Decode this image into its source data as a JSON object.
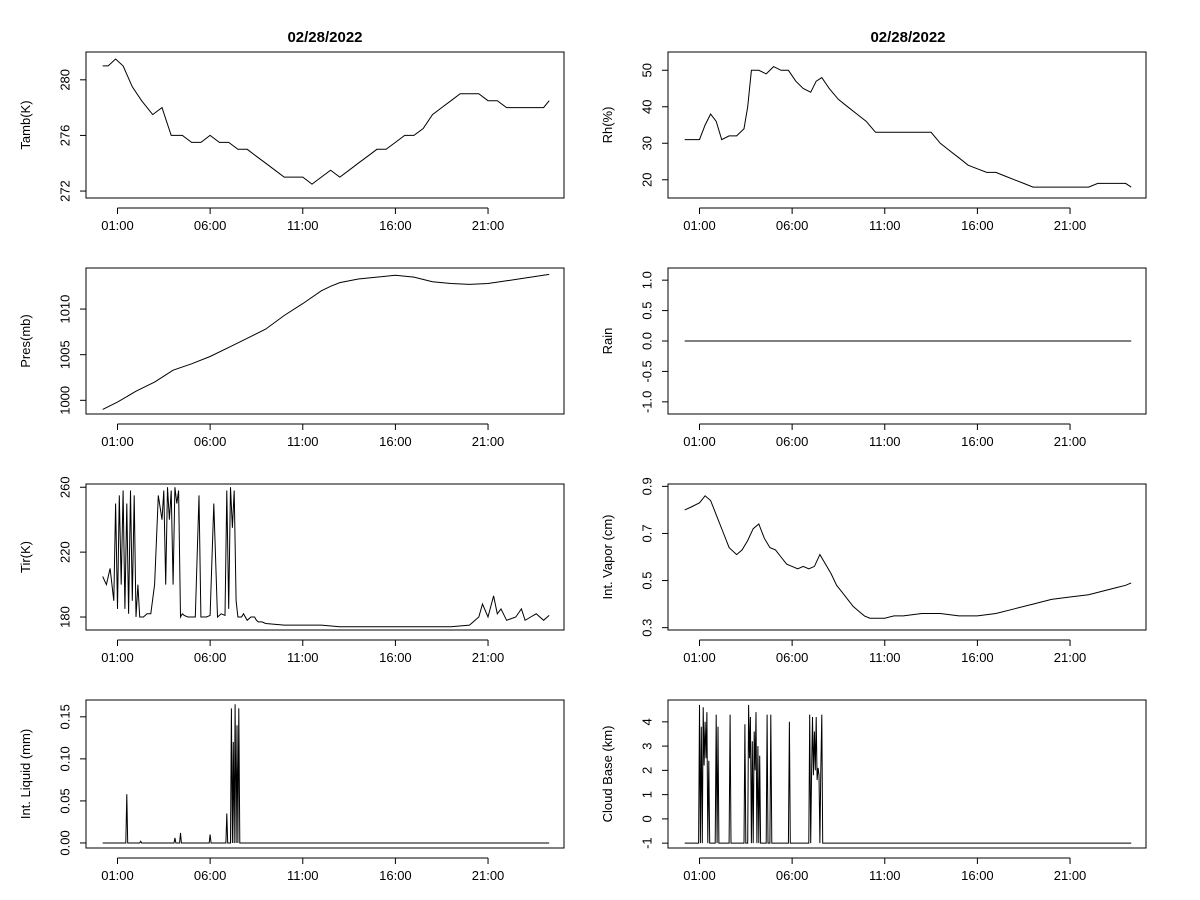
{
  "column_titles": [
    "02/28/2022",
    "02/28/2022"
  ],
  "chart_data": [
    {
      "id": "tamb",
      "type": "line",
      "ylabel": "Tamb(K)",
      "ylim": [
        271.5,
        282
      ],
      "yticks": [
        272,
        276,
        280
      ],
      "ytick_labels": [
        "272",
        "276",
        "280"
      ],
      "x": [
        0.2,
        0.5,
        0.9,
        1.3,
        1.8,
        2.3,
        2.9,
        3.4,
        3.9,
        4.5,
        5.0,
        5.5,
        6.0,
        6.5,
        7.0,
        7.5,
        8.0,
        8.5,
        9.0,
        9.5,
        10.0,
        10.5,
        11.0,
        11.5,
        12.0,
        12.5,
        13.0,
        13.5,
        14.0,
        14.5,
        15.0,
        15.5,
        16.0,
        16.5,
        17.0,
        17.5,
        18.0,
        18.5,
        19.0,
        19.5,
        20.0,
        20.5,
        21.0,
        21.5,
        22.0,
        22.5,
        23.0,
        23.5,
        24.0,
        24.3
      ],
      "y": [
        281.0,
        281.0,
        281.5,
        281.0,
        279.5,
        278.5,
        277.5,
        278.0,
        276.0,
        276.0,
        275.5,
        275.5,
        276.0,
        275.5,
        275.5,
        275.0,
        275.0,
        274.5,
        274.0,
        273.5,
        273.0,
        273.0,
        273.0,
        272.5,
        273.0,
        273.5,
        273.0,
        273.5,
        274.0,
        274.5,
        275.0,
        275.0,
        275.5,
        276.0,
        276.0,
        276.5,
        277.5,
        278.0,
        278.5,
        279.0,
        279.0,
        279.0,
        278.5,
        278.5,
        278.0,
        278.0,
        278.0,
        278.0,
        278.0,
        278.5
      ]
    },
    {
      "id": "rh",
      "type": "line",
      "ylabel": "Rh(%)",
      "ylim": [
        15,
        55
      ],
      "yticks": [
        20,
        30,
        40,
        50
      ],
      "ytick_labels": [
        "20",
        "30",
        "40",
        "50"
      ],
      "x": [
        0.2,
        0.6,
        1.0,
        1.3,
        1.6,
        1.9,
        2.2,
        2.6,
        3.0,
        3.4,
        3.6,
        3.8,
        4.2,
        4.6,
        5.0,
        5.4,
        5.8,
        6.2,
        6.6,
        7.0,
        7.3,
        7.6,
        8.0,
        8.5,
        9.0,
        9.5,
        10.0,
        10.5,
        11.0,
        11.5,
        12.0,
        12.5,
        13.0,
        13.5,
        14.0,
        14.5,
        15.0,
        15.5,
        16.0,
        16.5,
        17.0,
        17.5,
        18.0,
        18.5,
        19.0,
        19.5,
        20.0,
        20.5,
        21.0,
        21.5,
        22.0,
        22.5,
        23.0,
        23.5,
        24.0,
        24.3
      ],
      "y": [
        31,
        31,
        31,
        35,
        38,
        36,
        31,
        32,
        32,
        34,
        40,
        50,
        50,
        49,
        51,
        50,
        50,
        47,
        45,
        44,
        47,
        48,
        45,
        42,
        40,
        38,
        36,
        33,
        33,
        33,
        33,
        33,
        33,
        33,
        30,
        28,
        26,
        24,
        23,
        22,
        22,
        21,
        20,
        19,
        18,
        18,
        18,
        18,
        18,
        18,
        18,
        19,
        19,
        19,
        19,
        18
      ]
    },
    {
      "id": "pres",
      "type": "line",
      "ylabel": "Pres(mb)",
      "ylim": [
        998.5,
        1014.5
      ],
      "yticks": [
        1000,
        1005,
        1010
      ],
      "ytick_labels": [
        "1000",
        "1005",
        "1010"
      ],
      "x": [
        0.2,
        1.0,
        2.0,
        3.0,
        4.0,
        5.0,
        6.0,
        7.0,
        8.0,
        9.0,
        10.0,
        11.0,
        12.0,
        12.5,
        13.0,
        14.0,
        15.0,
        16.0,
        17.0,
        18.0,
        19.0,
        20.0,
        21.0,
        22.0,
        23.0,
        24.3
      ],
      "y": [
        999.0,
        999.8,
        1001.0,
        1002.0,
        1003.3,
        1004.0,
        1004.8,
        1005.8,
        1006.8,
        1007.8,
        1009.3,
        1010.6,
        1012.0,
        1012.5,
        1012.9,
        1013.3,
        1013.5,
        1013.7,
        1013.5,
        1013.0,
        1012.8,
        1012.7,
        1012.8,
        1013.1,
        1013.4,
        1013.8
      ]
    },
    {
      "id": "rain",
      "type": "line",
      "ylabel": "Rain",
      "ylim": [
        -1.2,
        1.2
      ],
      "yticks": [
        -1.0,
        -0.5,
        0.0,
        0.5,
        1.0
      ],
      "ytick_labels": [
        "-1.0",
        "-0.5",
        "0.0",
        "0.5",
        "1.0"
      ],
      "x": [
        0.2,
        24.3
      ],
      "y": [
        0.0,
        0.0
      ]
    },
    {
      "id": "tir",
      "type": "line",
      "ylabel": "Tir(K)",
      "ylim": [
        172,
        262
      ],
      "yticks": [
        180,
        220,
        260
      ],
      "ytick_labels": [
        "180",
        "220",
        "260"
      ],
      "x": [
        0.2,
        0.4,
        0.6,
        0.8,
        0.9,
        1.0,
        1.1,
        1.2,
        1.3,
        1.4,
        1.5,
        1.6,
        1.7,
        1.8,
        1.9,
        2.0,
        2.1,
        2.2,
        2.4,
        2.6,
        2.8,
        3.0,
        3.2,
        3.4,
        3.5,
        3.6,
        3.7,
        3.8,
        3.9,
        4.0,
        4.1,
        4.2,
        4.3,
        4.4,
        4.5,
        4.6,
        4.8,
        5.0,
        5.2,
        5.4,
        5.5,
        5.6,
        5.7,
        5.8,
        6.0,
        6.2,
        6.4,
        6.6,
        6.8,
        6.9,
        7.0,
        7.1,
        7.2,
        7.3,
        7.4,
        7.5,
        7.6,
        7.7,
        7.8,
        8.0,
        8.2,
        8.4,
        8.5,
        8.6,
        8.8,
        9.0,
        10.0,
        11.0,
        12.0,
        13.0,
        14.0,
        15.0,
        16.0,
        17.0,
        18.0,
        19.0,
        20.0,
        20.5,
        20.7,
        21.0,
        21.3,
        21.5,
        21.7,
        22.0,
        22.5,
        22.8,
        23.0,
        23.3,
        23.6,
        24.0,
        24.3
      ],
      "y": [
        205,
        200,
        210,
        190,
        250,
        185,
        255,
        200,
        258,
        185,
        250,
        182,
        258,
        190,
        255,
        180,
        200,
        180,
        180,
        182,
        182,
        200,
        255,
        240,
        258,
        200,
        260,
        240,
        258,
        200,
        260,
        250,
        258,
        180,
        182,
        181,
        180,
        180,
        180,
        255,
        180,
        180,
        180,
        180,
        181,
        250,
        180,
        182,
        181,
        258,
        185,
        260,
        235,
        258,
        190,
        180,
        180,
        180,
        182,
        178,
        180,
        180,
        178,
        177,
        177,
        176,
        175,
        175,
        175,
        174,
        174,
        174,
        174,
        174,
        174,
        174,
        175,
        180,
        188,
        180,
        193,
        182,
        185,
        178,
        180,
        185,
        178,
        180,
        182,
        178,
        181
      ]
    },
    {
      "id": "vapor",
      "type": "line",
      "ylabel": "Int. Vapor (cm)",
      "ylim": [
        0.29,
        0.91
      ],
      "yticks": [
        0.3,
        0.5,
        0.7,
        0.9
      ],
      "ytick_labels": [
        "0.3",
        "0.5",
        "0.7",
        "0.9"
      ],
      "x": [
        0.2,
        0.5,
        1.0,
        1.3,
        1.6,
        2.0,
        2.3,
        2.6,
        3.0,
        3.3,
        3.6,
        3.9,
        4.2,
        4.5,
        4.8,
        5.1,
        5.4,
        5.7,
        6.0,
        6.3,
        6.6,
        6.9,
        7.2,
        7.5,
        7.8,
        8.1,
        8.4,
        8.7,
        9.0,
        9.3,
        9.6,
        9.9,
        10.2,
        10.5,
        11.0,
        11.5,
        12.0,
        13.0,
        14.0,
        15.0,
        16.0,
        17.0,
        18.0,
        19.0,
        20.0,
        21.0,
        22.0,
        23.0,
        23.5,
        24.0,
        24.3
      ],
      "y": [
        0.8,
        0.81,
        0.83,
        0.86,
        0.84,
        0.76,
        0.7,
        0.64,
        0.61,
        0.63,
        0.67,
        0.72,
        0.74,
        0.68,
        0.64,
        0.63,
        0.6,
        0.57,
        0.56,
        0.55,
        0.56,
        0.55,
        0.56,
        0.61,
        0.57,
        0.53,
        0.48,
        0.45,
        0.42,
        0.39,
        0.37,
        0.35,
        0.34,
        0.34,
        0.34,
        0.35,
        0.35,
        0.36,
        0.36,
        0.35,
        0.35,
        0.36,
        0.38,
        0.4,
        0.42,
        0.43,
        0.44,
        0.46,
        0.47,
        0.48,
        0.49
      ]
    },
    {
      "id": "liquid",
      "type": "line",
      "ylabel": "Int. Liquid (mm)",
      "ylim": [
        -0.006,
        0.17
      ],
      "yticks": [
        0.0,
        0.05,
        0.1,
        0.15
      ],
      "ytick_labels": [
        "0.00",
        "0.05",
        "0.10",
        "0.15"
      ],
      "x": [
        0.2,
        1.45,
        1.5,
        1.55,
        1.6,
        2.2,
        2.25,
        2.3,
        4.05,
        4.1,
        4.15,
        4.35,
        4.4,
        4.45,
        5.95,
        6.0,
        6.05,
        6.85,
        6.9,
        6.95,
        7.1,
        7.15,
        7.2,
        7.25,
        7.3,
        7.35,
        7.4,
        7.45,
        7.5,
        7.55,
        7.6,
        24.3
      ],
      "y": [
        0,
        0,
        0.058,
        0,
        0,
        0,
        0.002,
        0,
        0,
        0.006,
        0,
        0,
        0.012,
        0,
        0,
        0.01,
        0,
        0,
        0.035,
        0,
        0,
        0.16,
        0,
        0.12,
        0,
        0.165,
        0,
        0.14,
        0,
        0.16,
        0,
        0
      ]
    },
    {
      "id": "cloud",
      "type": "line",
      "ylabel": "Cloud Base (km)",
      "ylim": [
        -1.2,
        4.9
      ],
      "yticks": [
        -1,
        0,
        1,
        2,
        3,
        4
      ],
      "ytick_labels": [
        "-1",
        "0",
        "1",
        "2",
        "3",
        "4"
      ],
      "x": [
        0.2,
        0.95,
        1.0,
        1.05,
        1.1,
        1.15,
        1.2,
        1.25,
        1.3,
        1.35,
        1.4,
        1.45,
        1.5,
        1.55,
        1.6,
        1.85,
        1.9,
        1.95,
        2.0,
        2.05,
        2.6,
        2.65,
        2.7,
        3.4,
        3.45,
        3.5,
        3.6,
        3.65,
        3.7,
        3.75,
        3.8,
        3.85,
        3.9,
        3.95,
        4.0,
        4.05,
        4.1,
        4.15,
        4.2,
        4.25,
        4.3,
        4.35,
        4.6,
        4.65,
        4.7,
        4.8,
        4.85,
        4.9,
        5.8,
        5.85,
        5.9,
        6.9,
        6.95,
        7.0,
        7.05,
        7.1,
        7.15,
        7.2,
        7.25,
        7.3,
        7.35,
        7.4,
        7.45,
        7.5,
        7.55,
        7.6,
        7.65,
        7.7,
        7.75,
        24.3
      ],
      "y": [
        -1,
        -1,
        4.7,
        -1,
        3.8,
        -1,
        4.6,
        2.2,
        4.0,
        2.5,
        4.4,
        -1,
        2.4,
        -1,
        -1,
        -1,
        4.3,
        -1,
        3.8,
        -1,
        -1,
        4.3,
        -1,
        -1,
        3.9,
        -1,
        -1,
        4.7,
        2.5,
        4.2,
        -1,
        3.2,
        -1,
        3.6,
        2.0,
        4.4,
        -1,
        3.0,
        -1,
        2.6,
        -1,
        -1,
        -1,
        4.3,
        -1,
        -1,
        4.3,
        -1,
        -1,
        4.0,
        -1,
        -1,
        4.3,
        -1,
        2.0,
        4.2,
        1.8,
        3.6,
        2.0,
        4.2,
        1.6,
        2.1,
        1.8,
        -1,
        2.0,
        4.3,
        -1,
        -1,
        -1,
        -1
      ]
    }
  ],
  "x_axis": {
    "ticks": [
      1,
      6,
      11,
      16,
      21
    ],
    "labels": [
      "01:00",
      "06:00",
      "11:00",
      "16:00",
      "21:00"
    ],
    "xlim": [
      -0.7,
      25.1
    ]
  }
}
